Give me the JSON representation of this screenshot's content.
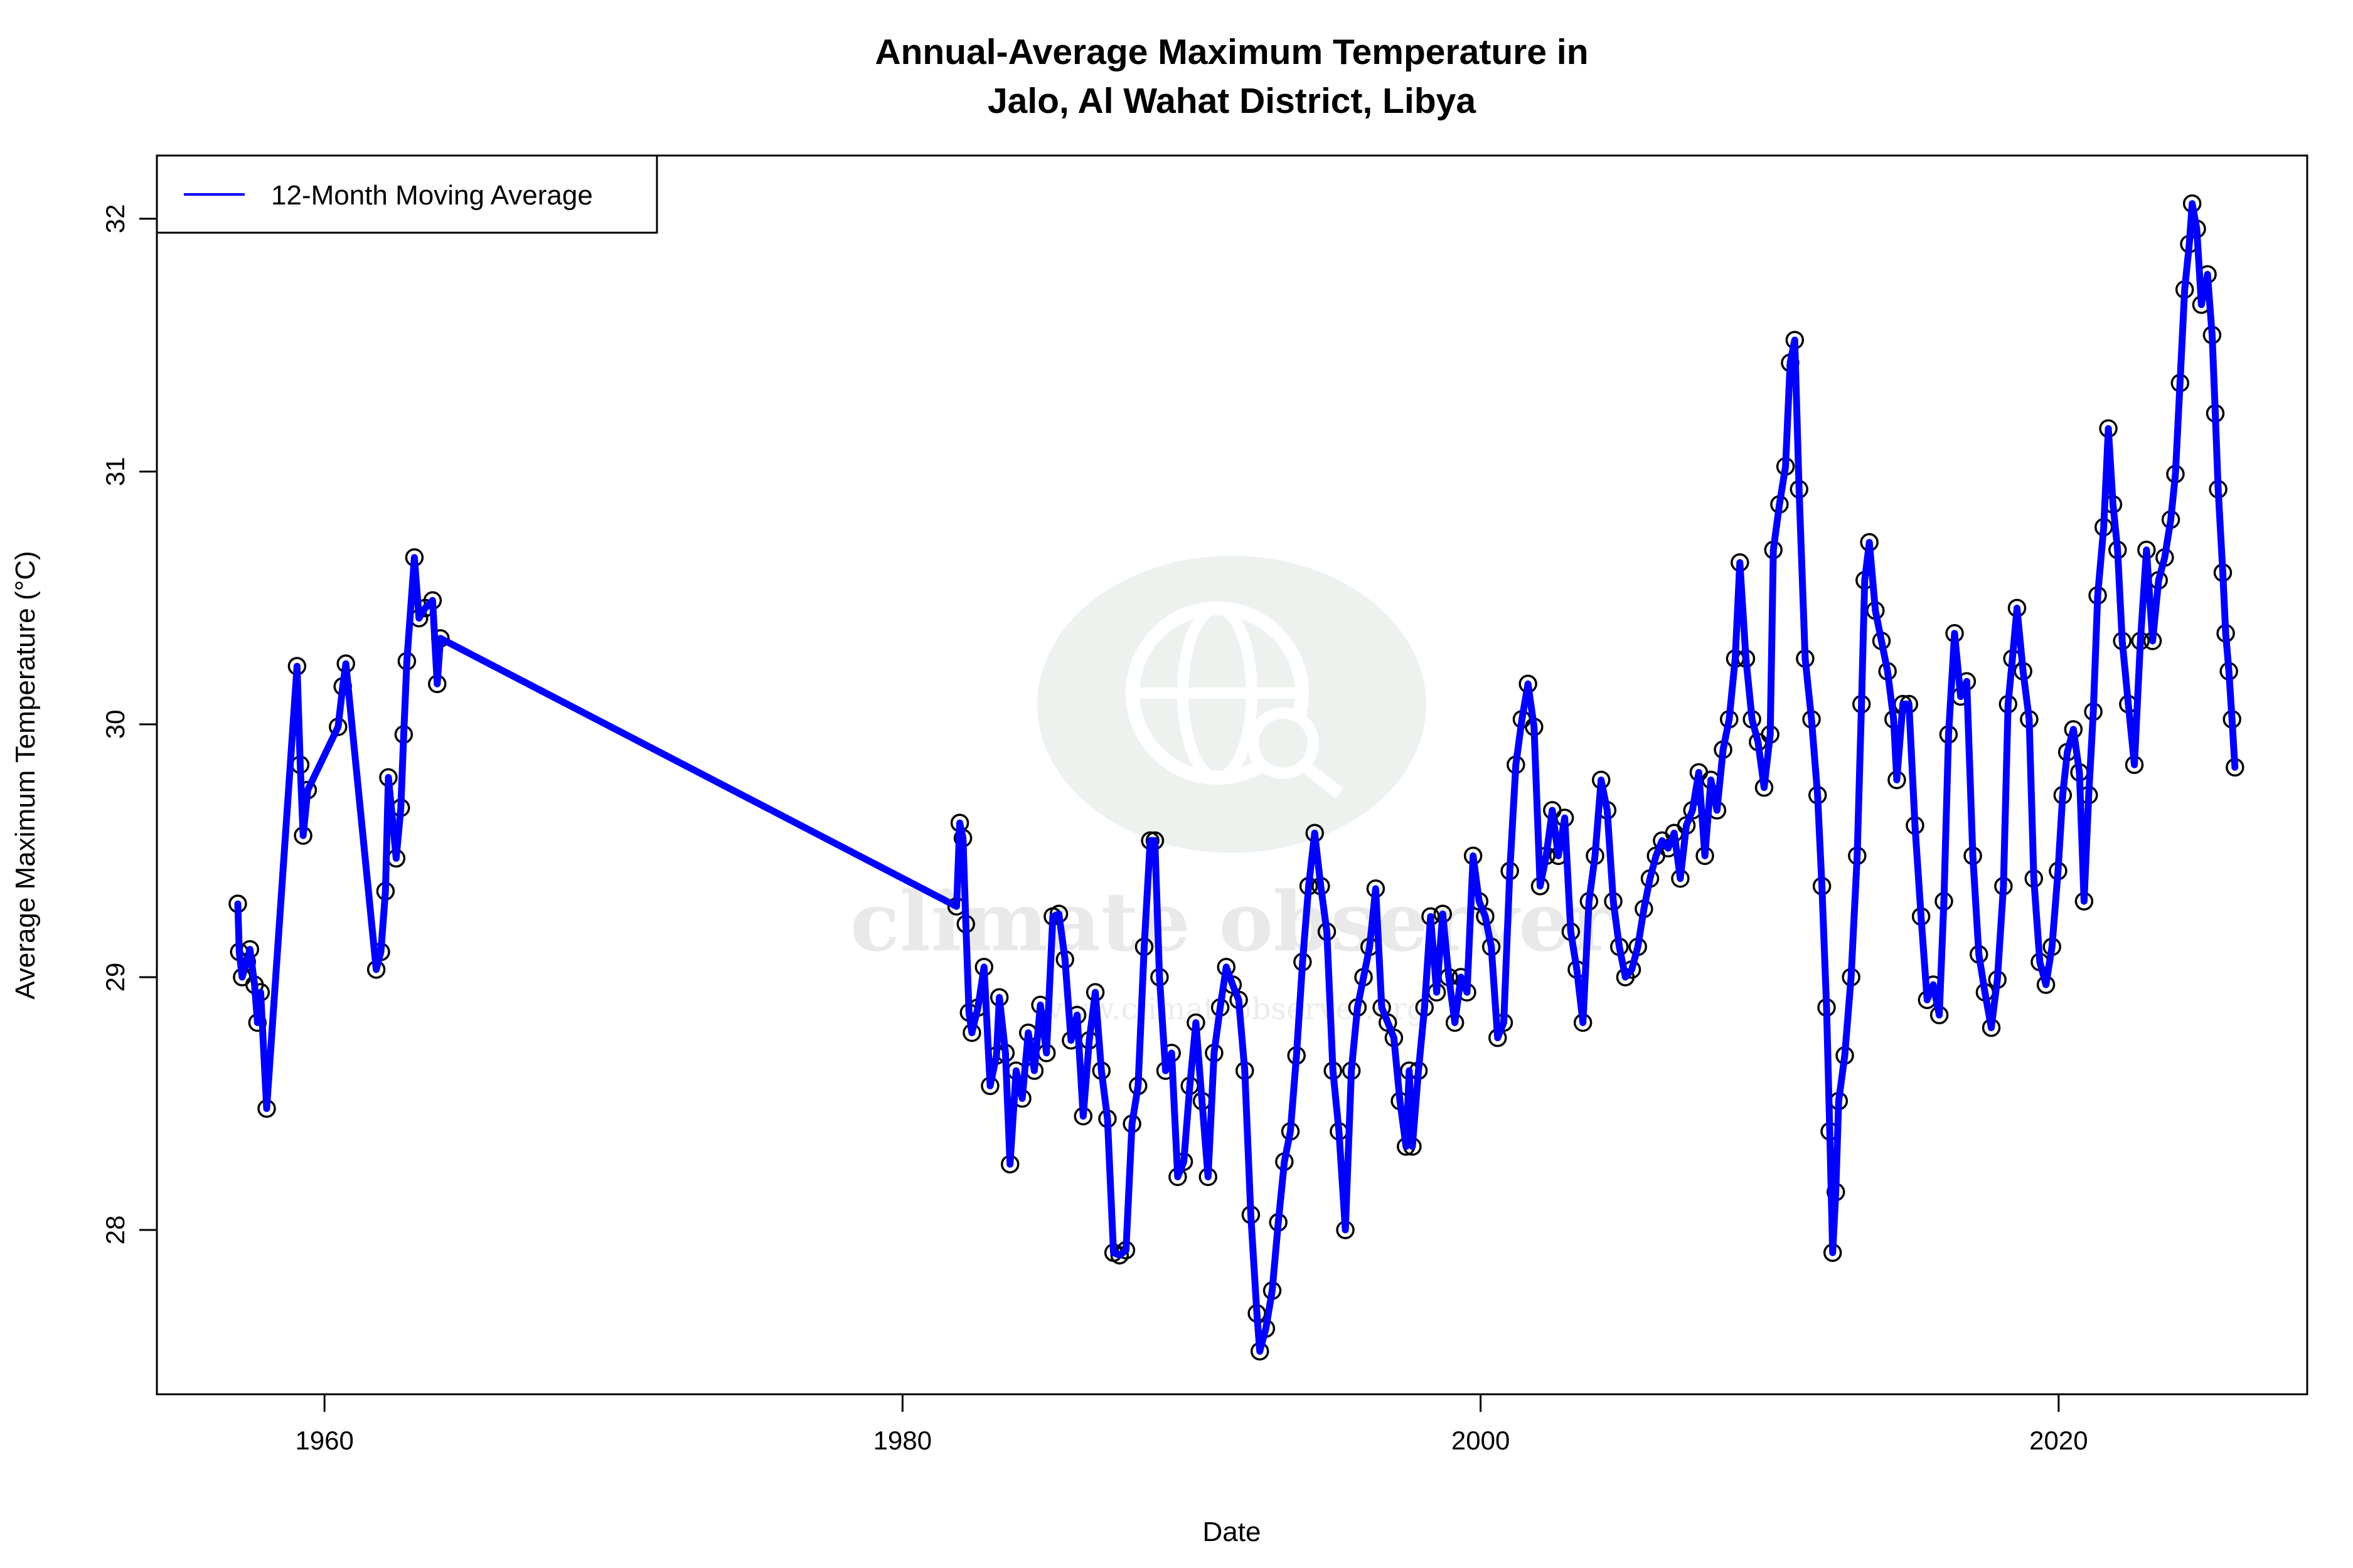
{
  "chart_data": {
    "type": "line",
    "title_line1": "Annual-Average Maximum Temperature in",
    "title_line2": "Jalo, Al Wahat District, Libya",
    "xlabel": "Date",
    "ylabel": "Average Maximum Temperature (°C)",
    "xlim": [
      1954.2,
      2028.6
    ],
    "ylim": [
      27.35,
      32.25
    ],
    "x_ticks": [
      1960,
      1980,
      2000,
      2020
    ],
    "x_tick_labels": [
      "1960",
      "1980",
      "2000",
      "2020"
    ],
    "y_ticks": [
      28,
      29,
      30,
      31,
      32
    ],
    "y_tick_labels": [
      "28",
      "29",
      "30",
      "31",
      "32"
    ],
    "grid": false,
    "legend": {
      "position": "top-left",
      "entries": [
        "12-Month Moving Average"
      ]
    },
    "series": [
      {
        "name": "12-Month Moving Average",
        "color": "#0000ff",
        "markers": "open-circle",
        "x": [
          1957.0,
          1957.05,
          1957.15,
          1957.31,
          1957.42,
          1957.58,
          1957.68,
          1957.79,
          1958.0,
          1959.05,
          1959.16,
          1959.26,
          1959.42,
          1960.47,
          1960.63,
          1960.74,
          1961.79,
          1961.95,
          1962.11,
          1962.21,
          1962.48,
          1962.64,
          1962.74,
          1962.85,
          1963.11,
          1963.27,
          1963.48,
          1963.74,
          1963.9,
          1964.01,
          1981.87,
          1981.98,
          1982.09,
          1982.19,
          1982.3,
          1982.4,
          1982.61,
          1982.82,
          1983.03,
          1983.25,
          1983.35,
          1983.56,
          1983.72,
          1983.93,
          1984.14,
          1984.35,
          1984.56,
          1984.77,
          1984.98,
          1985.2,
          1985.41,
          1985.62,
          1985.83,
          1986.04,
          1986.25,
          1986.46,
          1986.67,
          1986.88,
          1987.09,
          1987.3,
          1987.51,
          1987.73,
          1987.94,
          1988.15,
          1988.36,
          1988.57,
          1988.73,
          1988.89,
          1989.1,
          1989.31,
          1989.52,
          1989.73,
          1989.94,
          1990.15,
          1990.36,
          1990.57,
          1990.78,
          1990.99,
          1991.2,
          1991.42,
          1991.63,
          1991.84,
          1992.05,
          1992.26,
          1992.36,
          1992.57,
          1992.79,
          1993.0,
          1993.21,
          1993.42,
          1993.63,
          1993.84,
          1994.05,
          1994.26,
          1994.47,
          1994.68,
          1994.89,
          1995.1,
          1995.32,
          1995.53,
          1995.74,
          1995.95,
          1996.16,
          1996.37,
          1996.58,
          1996.79,
          1997.0,
          1997.21,
          1997.42,
          1997.53,
          1997.64,
          1997.85,
          1998.06,
          1998.27,
          1998.48,
          1998.69,
          1998.9,
          1999.11,
          1999.32,
          1999.53,
          1999.74,
          1999.95,
          2000.16,
          2000.37,
          2000.59,
          2000.8,
          2001.01,
          2001.22,
          2001.43,
          2001.64,
          2001.85,
          2002.06,
          2002.27,
          2002.48,
          2002.69,
          2002.91,
          2003.12,
          2003.33,
          2003.54,
          2003.75,
          2003.96,
          2004.17,
          2004.38,
          2004.59,
          2004.8,
          2005.01,
          2005.23,
          2005.44,
          2005.65,
          2005.86,
          2006.07,
          2006.28,
          2006.49,
          2006.7,
          2006.91,
          2007.12,
          2007.33,
          2007.55,
          2007.76,
          2007.97,
          2008.18,
          2008.39,
          2008.6,
          2008.81,
          2008.97,
          2009.18,
          2009.39,
          2009.6,
          2009.81,
          2010.02,
          2010.13,
          2010.34,
          2010.55,
          2010.71,
          2010.87,
          2011.02,
          2011.23,
          2011.45,
          2011.66,
          2011.81,
          2011.97,
          2012.08,
          2012.18,
          2012.29,
          2012.39,
          2012.6,
          2012.82,
          2013.03,
          2013.18,
          2013.29,
          2013.45,
          2013.66,
          2013.87,
          2014.08,
          2014.29,
          2014.4,
          2014.61,
          2014.82,
          2015.03,
          2015.24,
          2015.45,
          2015.66,
          2015.87,
          2016.03,
          2016.19,
          2016.4,
          2016.61,
          2016.82,
          2017.03,
          2017.24,
          2017.45,
          2017.67,
          2017.88,
          2018.09,
          2018.25,
          2018.4,
          2018.56,
          2018.77,
          2018.98,
          2019.14,
          2019.35,
          2019.56,
          2019.77,
          2019.98,
          2020.14,
          2020.3,
          2020.51,
          2020.72,
          2020.88,
          2021.04,
          2021.2,
          2021.35,
          2021.56,
          2021.72,
          2021.88,
          2022.04,
          2022.2,
          2022.41,
          2022.62,
          2022.83,
          2023.04,
          2023.25,
          2023.46,
          2023.67,
          2023.88,
          2024.04,
          2024.2,
          2024.36,
          2024.52,
          2024.62,
          2024.78,
          2024.94,
          2025.15,
          2025.31,
          2025.42,
          2025.52,
          2025.68,
          2025.78,
          2025.89,
          2026.0,
          2026.1
        ],
        "y": [
          29.29,
          29.1,
          29.0,
          29.06,
          29.11,
          28.97,
          28.82,
          28.94,
          28.48,
          30.23,
          29.84,
          29.56,
          29.74,
          29.99,
          30.15,
          30.24,
          29.03,
          29.1,
          29.34,
          29.79,
          29.47,
          29.67,
          29.96,
          30.25,
          30.66,
          30.42,
          30.46,
          30.49,
          30.16,
          30.34,
          29.28,
          29.61,
          29.55,
          29.21,
          28.86,
          28.78,
          28.88,
          29.04,
          28.57,
          28.69,
          28.92,
          28.7,
          28.26,
          28.63,
          28.52,
          28.78,
          28.63,
          28.89,
          28.7,
          29.24,
          29.25,
          29.07,
          28.75,
          28.85,
          28.45,
          28.75,
          28.94,
          28.63,
          28.44,
          27.91,
          27.9,
          27.92,
          28.42,
          28.57,
          29.12,
          29.54,
          29.54,
          29.0,
          28.63,
          28.7,
          28.21,
          28.27,
          28.57,
          28.82,
          28.51,
          28.21,
          28.7,
          28.88,
          29.04,
          28.97,
          28.91,
          28.63,
          28.06,
          27.67,
          27.52,
          27.61,
          27.76,
          28.03,
          28.27,
          28.39,
          28.69,
          29.06,
          29.36,
          29.57,
          29.36,
          29.18,
          28.63,
          28.39,
          28.0,
          28.63,
          28.88,
          29.0,
          29.12,
          29.35,
          28.88,
          28.82,
          28.76,
          28.51,
          28.33,
          28.63,
          28.33,
          28.63,
          28.88,
          29.24,
          28.94,
          29.25,
          29.0,
          28.82,
          29.0,
          28.94,
          29.48,
          29.3,
          29.24,
          29.12,
          28.76,
          28.82,
          29.42,
          29.84,
          30.02,
          30.16,
          29.99,
          29.36,
          29.48,
          29.66,
          29.48,
          29.63,
          29.18,
          29.03,
          28.82,
          29.3,
          29.48,
          29.78,
          29.66,
          29.3,
          29.12,
          29.0,
          29.03,
          29.12,
          29.27,
          29.39,
          29.48,
          29.54,
          29.51,
          29.57,
          29.39,
          29.6,
          29.66,
          29.81,
          29.48,
          29.78,
          29.66,
          29.9,
          30.02,
          30.26,
          30.64,
          30.26,
          30.02,
          29.93,
          29.75,
          29.96,
          30.69,
          30.87,
          31.02,
          31.43,
          31.52,
          30.93,
          30.26,
          30.02,
          29.72,
          29.36,
          28.88,
          28.39,
          27.91,
          28.15,
          28.51,
          28.69,
          29.0,
          29.48,
          30.08,
          30.57,
          30.72,
          30.45,
          30.33,
          30.21,
          30.02,
          29.78,
          30.08,
          30.08,
          29.6,
          29.24,
          28.91,
          28.97,
          28.85,
          29.3,
          29.96,
          30.36,
          30.11,
          30.17,
          29.48,
          29.09,
          28.94,
          28.8,
          28.99,
          29.36,
          30.08,
          30.26,
          30.46,
          30.21,
          30.02,
          29.39,
          29.06,
          28.97,
          29.12,
          29.42,
          29.72,
          29.89,
          29.98,
          29.81,
          29.3,
          29.72,
          30.05,
          30.51,
          30.78,
          31.17,
          30.87,
          30.69,
          30.33,
          30.08,
          29.84,
          30.33,
          30.69,
          30.33,
          30.57,
          30.66,
          30.81,
          30.99,
          31.35,
          31.72,
          31.9,
          32.06,
          31.96,
          31.66,
          31.78,
          31.54,
          31.23,
          30.93,
          30.6,
          30.36,
          30.21,
          30.02,
          29.83
        ]
      }
    ]
  },
  "watermark": {
    "text": "climate observer",
    "url_text": "www.climateobserver.org",
    "color": "#eef2ee"
  }
}
